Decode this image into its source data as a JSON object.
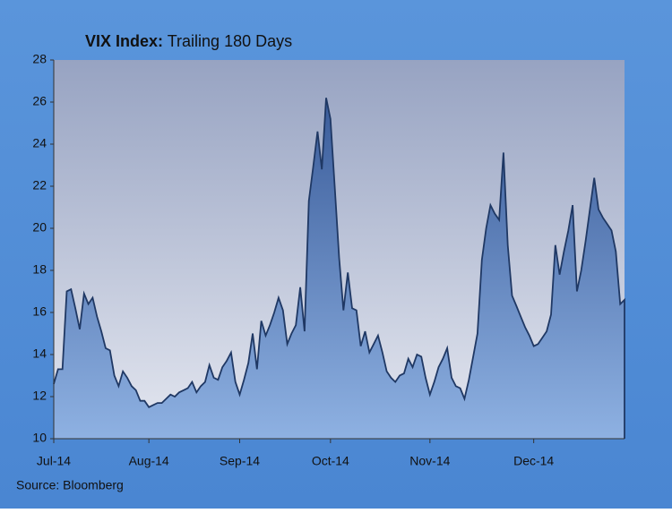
{
  "chart_data": {
    "type": "area",
    "title": "VIX Index:",
    "subtitle": "Trailing 180 Days",
    "source": "Source: Bloomberg",
    "categories": [
      "Jul-14",
      null,
      null,
      null,
      null,
      null,
      null,
      null,
      null,
      null,
      null,
      null,
      null,
      null,
      null,
      null,
      null,
      null,
      null,
      null,
      null,
      null,
      "Aug-14",
      null,
      null,
      null,
      null,
      null,
      null,
      null,
      null,
      null,
      null,
      null,
      null,
      null,
      null,
      null,
      null,
      null,
      null,
      null,
      null,
      "Sep-14",
      null,
      null,
      null,
      null,
      null,
      null,
      null,
      null,
      null,
      null,
      null,
      null,
      null,
      null,
      null,
      null,
      null,
      null,
      null,
      null,
      "Oct-14",
      null,
      null,
      null,
      null,
      null,
      null,
      null,
      null,
      null,
      null,
      null,
      null,
      null,
      null,
      null,
      null,
      null,
      null,
      null,
      null,
      null,
      null,
      "Nov-14",
      null,
      null,
      null,
      null,
      null,
      null,
      null,
      null,
      null,
      null,
      null,
      null,
      null,
      null,
      null,
      null,
      null,
      null,
      null,
      null,
      null,
      null,
      null,
      "Dec-14",
      null,
      null,
      null,
      null,
      null,
      null,
      null,
      null,
      null,
      null,
      null,
      null,
      null,
      null,
      null,
      null,
      null,
      null,
      null,
      null,
      null
    ],
    "values": [
      12.6,
      13.3,
      13.3,
      17.0,
      17.1,
      16.2,
      15.2,
      16.9,
      16.4,
      16.7,
      15.8,
      15.1,
      14.3,
      14.2,
      13.0,
      12.5,
      13.2,
      12.9,
      12.5,
      12.3,
      11.8,
      11.8,
      11.5,
      11.6,
      11.7,
      11.7,
      11.9,
      12.1,
      12.0,
      12.2,
      12.3,
      12.4,
      12.7,
      12.2,
      12.5,
      12.7,
      13.5,
      12.9,
      12.8,
      13.4,
      13.7,
      14.1,
      12.7,
      12.1,
      12.8,
      13.6,
      15.0,
      13.3,
      15.6,
      14.9,
      15.4,
      16.0,
      16.7,
      16.1,
      14.5,
      15.0,
      15.4,
      17.2,
      15.1,
      21.3,
      22.9,
      24.6,
      22.8,
      26.2,
      25.2,
      21.9,
      18.6,
      16.1,
      17.9,
      16.2,
      16.1,
      14.4,
      15.1,
      14.1,
      14.5,
      14.9,
      14.1,
      13.2,
      12.9,
      12.7,
      13.0,
      13.1,
      13.8,
      13.4,
      14.0,
      13.9,
      12.9,
      12.1,
      12.7,
      13.4,
      13.8,
      14.3,
      12.9,
      12.5,
      12.4,
      11.9,
      12.8,
      13.9,
      15.0,
      18.5,
      20.0,
      21.1,
      20.7,
      20.4,
      23.6,
      19.2,
      16.8,
      16.3,
      15.8,
      15.3,
      14.9,
      14.4,
      14.5,
      14.8,
      15.1,
      15.9,
      19.2,
      17.8,
      18.9,
      19.9,
      21.1,
      17.0,
      18.0,
      19.4,
      20.9,
      22.4,
      20.9,
      20.5,
      20.2,
      19.9,
      18.9,
      16.4,
      16.6
    ],
    "color": "#1f3864",
    "ylim": [
      10,
      28
    ],
    "yticks": [
      10,
      12,
      14,
      16,
      18,
      20,
      22,
      24,
      26,
      28
    ]
  }
}
